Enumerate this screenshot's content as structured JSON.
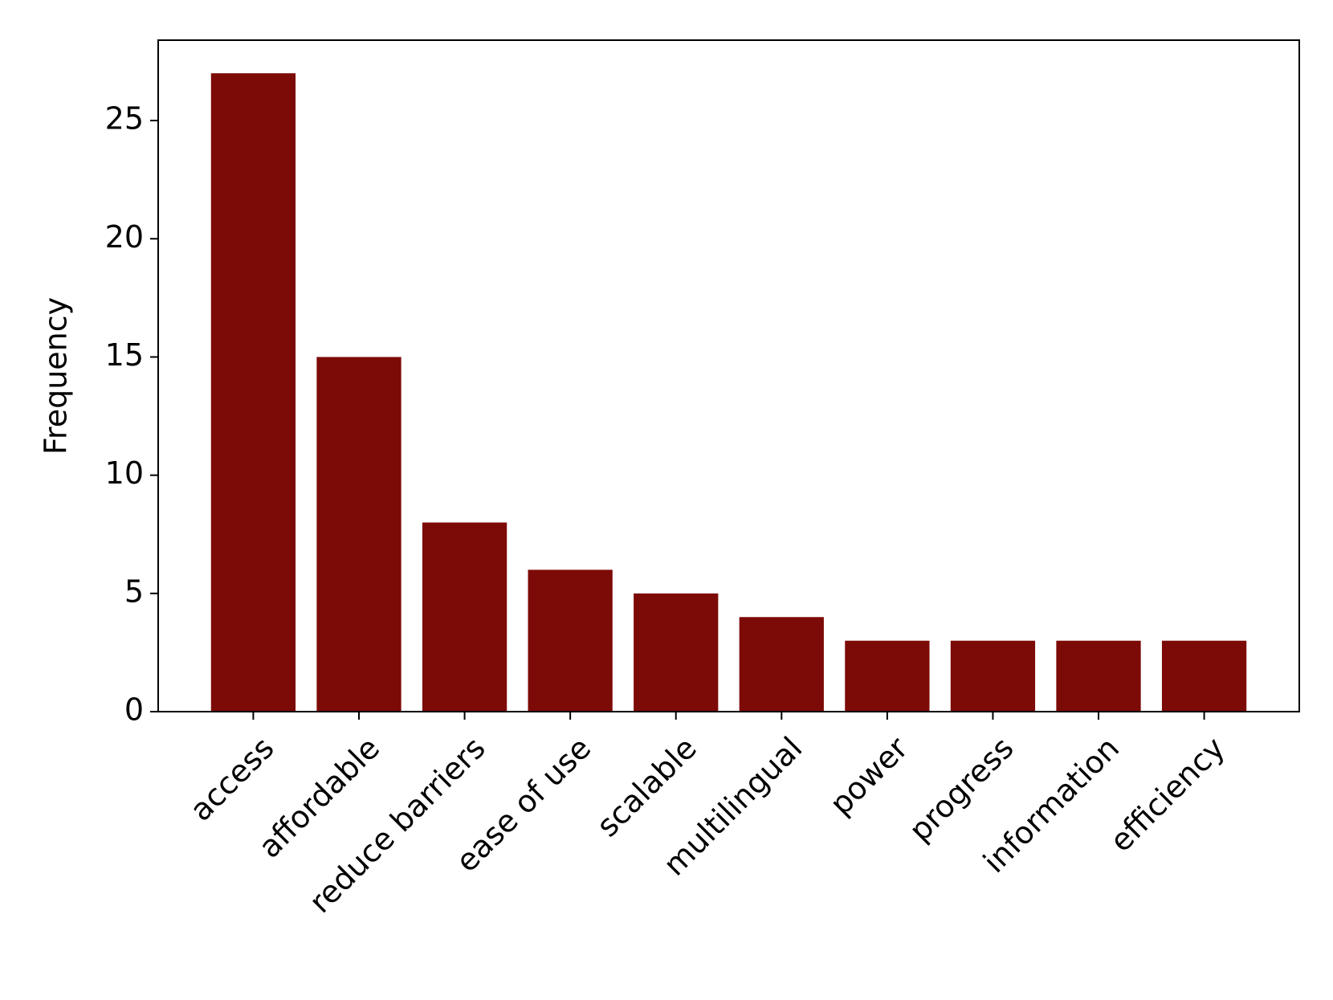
{
  "chart_data": {
    "type": "bar",
    "y_label": "Frequency",
    "categories": [
      "access",
      "affordable",
      "reduce barriers",
      "ease of use",
      "scalable",
      "multilingual",
      "power",
      "progress",
      "information",
      "efficiency"
    ],
    "values": [
      27,
      15,
      8,
      6,
      5,
      4,
      3,
      3,
      3,
      3
    ],
    "color": "#7c0a06",
    "ylim": [
      0,
      28.4
    ],
    "yticks": [
      0,
      5,
      10,
      15,
      20,
      25
    ],
    "grid": false
  }
}
